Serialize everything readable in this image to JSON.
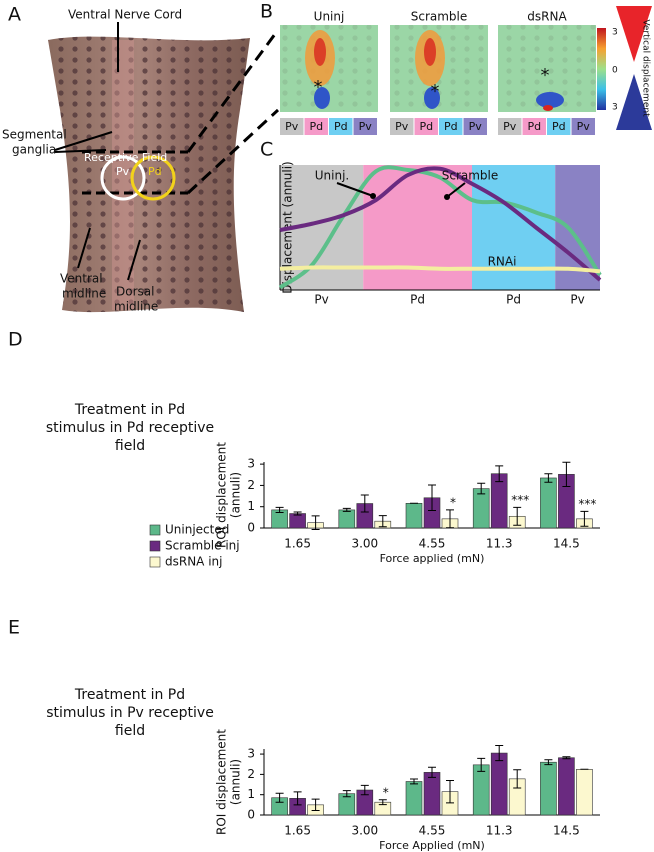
{
  "panel_a": {
    "label": "A",
    "nerve_cord": "Ventral Nerve Cord",
    "ganglia": [
      "Segmental",
      "ganglia"
    ],
    "receptive_field": "Receptive Field",
    "pv": "Pv",
    "pd": "Pd",
    "ventral_midline": [
      "Ventral",
      "midline"
    ],
    "dorsal_midline": [
      "Dorsal",
      "midline"
    ]
  },
  "panel_b": {
    "label": "B",
    "titles": [
      "Uninj",
      "Scramble",
      "dsRNA"
    ],
    "markers": [
      "*",
      "*",
      "*"
    ],
    "strip_labels": [
      "Pv",
      "Pd",
      "Pd",
      "Pv"
    ],
    "strip_colors": [
      "#c4c4c4",
      "#f59ac8",
      "#6fcff2",
      "#8a82c4"
    ],
    "colorbar_labels": [
      "3",
      "0",
      "3"
    ],
    "colorbar_title": "Vertical displacement"
  },
  "chart_data": [
    {
      "type": "line",
      "label": "C",
      "ylabel": "Displacement (annuli)",
      "ylim": [
        0,
        1
      ],
      "regions": [
        {
          "label": "Pv",
          "color": "#c8c8c8"
        },
        {
          "label": "Pd",
          "color": "#f59ac8"
        },
        {
          "label": "Pd",
          "color": "#6fcff2"
        },
        {
          "label": "Pv",
          "color": "#8a82c4"
        }
      ],
      "series": [
        {
          "name": "Uninj.",
          "color": "#5cbf8a",
          "values": [
            0.02,
            0.2,
            0.6,
            0.95,
            0.96,
            0.9,
            0.72,
            0.7,
            0.62,
            0.5,
            0.12
          ]
        },
        {
          "name": "Scramble",
          "color": "#6a2a80",
          "values": [
            0.48,
            0.53,
            0.6,
            0.72,
            0.92,
            0.97,
            0.85,
            0.7,
            0.5,
            0.3,
            0.08
          ]
        },
        {
          "name": "RNAi",
          "color": "#f4eea0",
          "values": [
            0.17,
            0.18,
            0.18,
            0.18,
            0.18,
            0.17,
            0.17,
            0.17,
            0.17,
            0.17,
            0.15
          ]
        }
      ]
    },
    {
      "type": "bar",
      "label": "D",
      "side_text": [
        "Treatment in Pd",
        "stimulus in Pd receptive",
        "field"
      ],
      "ylabel": [
        "ROI displacement",
        "(annuli)"
      ],
      "xlabel": "Force applied (mN)",
      "categories": [
        "1.65",
        "3.00",
        "4.55",
        "11.3",
        "14.5"
      ],
      "ylim": [
        0,
        3.1
      ],
      "yticks": [
        0,
        1,
        2,
        3
      ],
      "series": [
        {
          "name": "Uninjected",
          "color": "#5db88a",
          "values": [
            0.85,
            0.85,
            1.16,
            1.85,
            2.35
          ],
          "errors": [
            0.12,
            0.07,
            0,
            0.25,
            0.2
          ]
        },
        {
          "name": "Scramble inj",
          "color": "#6a2a80",
          "values": [
            0.68,
            1.15,
            1.42,
            2.55,
            2.52
          ],
          "errors": [
            0.07,
            0.4,
            0.6,
            0.37,
            0.57
          ]
        },
        {
          "name": "dsRNA inj",
          "color": "#fcf8cf",
          "values": [
            0.25,
            0.32,
            0.43,
            0.55,
            0.43
          ],
          "errors": [
            0.32,
            0.26,
            0.42,
            0.42,
            0.35
          ],
          "significance_labels": [
            null,
            null,
            "*",
            "***",
            "***"
          ]
        }
      ]
    },
    {
      "type": "bar",
      "label": "E",
      "side_text": [
        "Treatment in Pd",
        "stimulus in Pv receptive",
        "field"
      ],
      "ylabel": [
        "ROI displacement",
        "(annuli)"
      ],
      "xlabel": "Force Applied (mN)",
      "categories": [
        "1.65",
        "3.00",
        "4.55",
        "11.3",
        "14.5"
      ],
      "ylim": [
        0,
        3.25
      ],
      "yticks": [
        0,
        1,
        2,
        3
      ],
      "series": [
        {
          "color": "#5db88a",
          "values": [
            0.85,
            1.05,
            1.65,
            2.47,
            2.6
          ],
          "errors": [
            0.22,
            0.15,
            0.12,
            0.32,
            0.12
          ]
        },
        {
          "color": "#6a2a80",
          "values": [
            0.82,
            1.23,
            2.1,
            3.05,
            2.82
          ],
          "errors": [
            0.32,
            0.23,
            0.25,
            0.37,
            0.05
          ]
        },
        {
          "color": "#fcf8cf",
          "values": [
            0.5,
            0.63,
            1.15,
            1.78,
            2.25
          ],
          "errors": [
            0.28,
            0.12,
            0.55,
            0.45,
            0
          ],
          "significance_labels": [
            null,
            "*",
            null,
            null,
            null
          ]
        }
      ]
    }
  ]
}
